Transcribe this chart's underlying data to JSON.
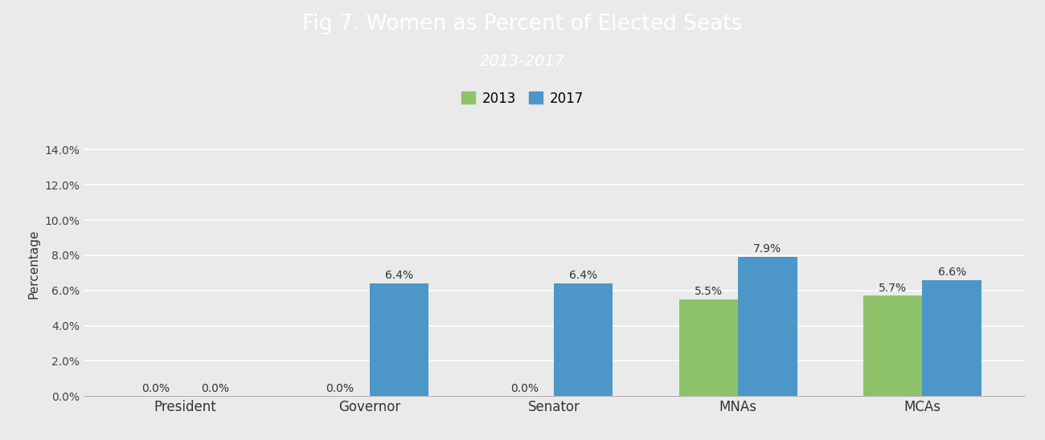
{
  "title_line1": "Fig 7. Women as Percent of Elected Seats",
  "title_line2": "2013-2017",
  "title_bg_color": "#5B9BD5",
  "title_text_color": "#FFFFFF",
  "categories": [
    "President",
    "Governor",
    "Senator",
    "MNAs",
    "MCAs"
  ],
  "values_2013": [
    0.0,
    0.0,
    0.0,
    5.5,
    5.7
  ],
  "values_2017": [
    0.0,
    6.4,
    6.4,
    7.9,
    6.6
  ],
  "color_2013": "#8DC26A",
  "color_2017": "#4C96C8",
  "ylabel": "Percentage",
  "ylim": [
    0,
    15
  ],
  "yticks": [
    0,
    2,
    4,
    6,
    8,
    10,
    12,
    14
  ],
  "ytick_labels": [
    "0.0%",
    "2.0%",
    "4.0%",
    "6.0%",
    "8.0%",
    "10.0%",
    "12.0%",
    "14.0%"
  ],
  "chart_bg_color": "#EAEAEA",
  "grid_color": "#FFFFFF",
  "bar_width": 0.32,
  "legend_labels": [
    "2013",
    "2017"
  ],
  "bar_label_fontsize": 10
}
